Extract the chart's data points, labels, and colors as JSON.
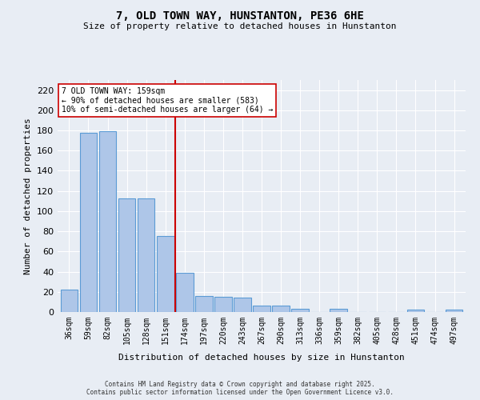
{
  "title1": "7, OLD TOWN WAY, HUNSTANTON, PE36 6HE",
  "title2": "Size of property relative to detached houses in Hunstanton",
  "xlabel": "Distribution of detached houses by size in Hunstanton",
  "ylabel": "Number of detached properties",
  "categories": [
    "36sqm",
    "59sqm",
    "82sqm",
    "105sqm",
    "128sqm",
    "151sqm",
    "174sqm",
    "197sqm",
    "220sqm",
    "243sqm",
    "267sqm",
    "290sqm",
    "313sqm",
    "336sqm",
    "359sqm",
    "382sqm",
    "405sqm",
    "428sqm",
    "451sqm",
    "474sqm",
    "497sqm"
  ],
  "values": [
    22,
    178,
    179,
    113,
    113,
    75,
    39,
    16,
    15,
    14,
    6,
    6,
    3,
    0,
    3,
    0,
    0,
    0,
    2,
    0,
    2
  ],
  "bar_color": "#aec6e8",
  "bar_edge_color": "#5b9bd5",
  "vline_index": 5,
  "vline_color": "#cc0000",
  "annotation_text": "7 OLD TOWN WAY: 159sqm\n← 90% of detached houses are smaller (583)\n10% of semi-detached houses are larger (64) →",
  "annotation_box_color": "#ffffff",
  "annotation_box_edge": "#cc0000",
  "ylim": [
    0,
    230
  ],
  "yticks": [
    0,
    20,
    40,
    60,
    80,
    100,
    120,
    140,
    160,
    180,
    200,
    220
  ],
  "background_color": "#e8edf4",
  "footer1": "Contains HM Land Registry data © Crown copyright and database right 2025.",
  "footer2": "Contains public sector information licensed under the Open Government Licence v3.0."
}
